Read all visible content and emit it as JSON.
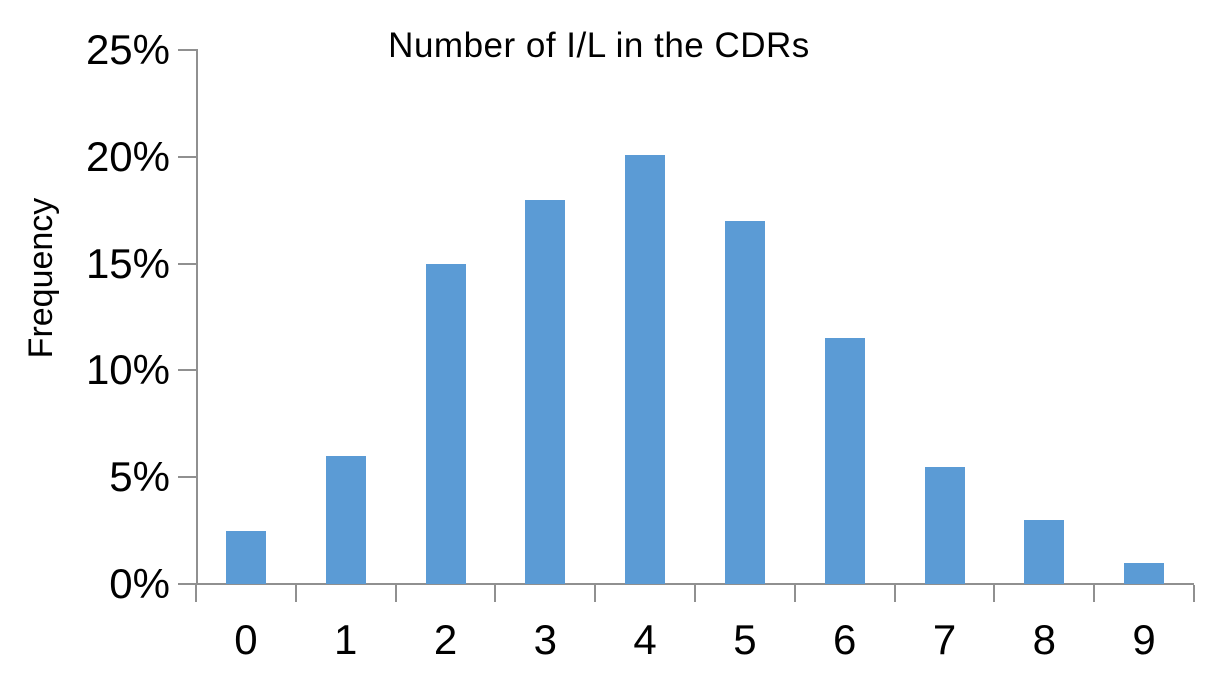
{
  "chart_data": {
    "type": "bar",
    "title": "Number of I/L in the CDRs",
    "xlabel": "",
    "ylabel": "Frequency",
    "categories": [
      "0",
      "1",
      "2",
      "3",
      "4",
      "5",
      "6",
      "7",
      "8",
      "9"
    ],
    "values": [
      2.5,
      6,
      15,
      18,
      20.1,
      17,
      11.5,
      5.5,
      3,
      1
    ],
    "ylim": [
      0,
      25
    ],
    "ytick_values": [
      0,
      5,
      10,
      15,
      20,
      25
    ],
    "ytick_labels": [
      "0%",
      "5%",
      "10%",
      "15%",
      "20%",
      "25%"
    ],
    "grid": false,
    "legend": false,
    "bar_color": "#5B9BD5",
    "axis_color": "#909090",
    "text_color": "#000000",
    "background_color": "#FFFFFF"
  }
}
